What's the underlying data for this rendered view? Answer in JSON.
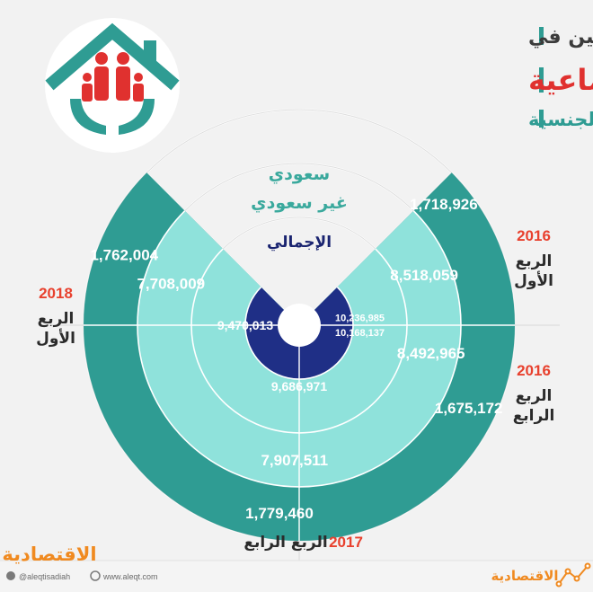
{
  "header": {
    "line1": "توزيع المشتركين في",
    "line2": "التأمينات الاجتماعية",
    "line3": "على رأس العمل حسب الجنسية"
  },
  "colors": {
    "background": "#f2f2f2",
    "teal_dark": "#2f9c93",
    "teal_light": "#8fe2db",
    "teal_text": "#3aa99d",
    "navy": "#1f2f86",
    "navy_text": "#1a2470",
    "red_title": "#e0312f",
    "orange_year": "#e8412e",
    "label_dark": "#2b2b2b",
    "footer_orange": "#f08a20"
  },
  "chart_data": {
    "type": "radial-bar",
    "legend": {
      "saudi": "سعودي",
      "non_saudi": "غير سعودي",
      "total": "الإجمالي"
    },
    "series": [
      {
        "name": "سعودي",
        "values": [
          1718926,
          1675172,
          1779460,
          1762004
        ],
        "labels": [
          "1,718,926",
          "1,675,172",
          "1,779,460",
          "1,762,004"
        ]
      },
      {
        "name": "غير سعودي",
        "values": [
          8518059,
          8492965,
          7907511,
          7708009
        ],
        "labels": [
          "8,518,059",
          "8,492,965",
          "7,907,511",
          "7,708,009"
        ]
      },
      {
        "name": "الإجمالي",
        "values": [
          10236985,
          10168137,
          9686971,
          9470013
        ],
        "labels": [
          "10,236,985",
          "10,168,137",
          "9,686,971",
          "9,470,013"
        ]
      }
    ],
    "periods": [
      {
        "year": "2016",
        "quarter": "الربع الأول"
      },
      {
        "year": "2016",
        "quarter": "الربع الرابع"
      },
      {
        "year": "2017",
        "quarter": "الربع الرابع"
      },
      {
        "year": "2018",
        "quarter": "الربع الأول"
      }
    ]
  },
  "period_labels": {
    "p2016q1": {
      "year": "2016",
      "line1": "الربع",
      "line2": "الأول"
    },
    "p2016q4": {
      "year": "2016",
      "line1": "الربع",
      "line2": "الرابع"
    },
    "p2017q4": {
      "year": "2017",
      "text": "الربع الرابع"
    },
    "p2018q1": {
      "year": "2018",
      "line1": "الربع",
      "line2": "الأول"
    }
  },
  "footer": {
    "brand": "الاقتصادية",
    "twitter": "@aleqtisadiah",
    "website": "www.aleqt.com",
    "brand_small": "الاقتصادية"
  }
}
